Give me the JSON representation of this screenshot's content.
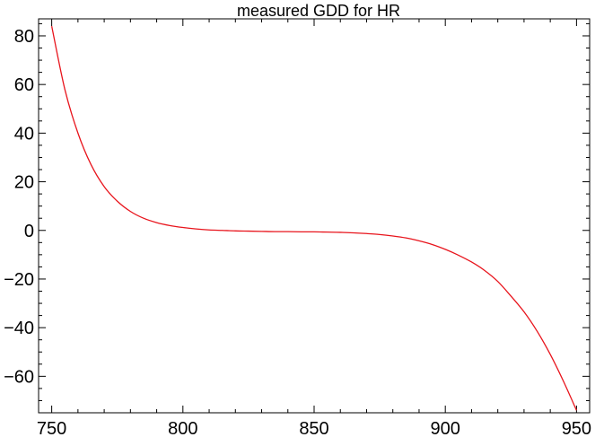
{
  "chart_data": {
    "type": "line",
    "title": "measured GDD for HR",
    "xlabel": "",
    "ylabel": "",
    "xlim": [
      745,
      955
    ],
    "ylim": [
      -75,
      87
    ],
    "x_ticks": [
      750,
      800,
      850,
      900,
      950
    ],
    "y_ticks": [
      -60,
      -40,
      -20,
      0,
      20,
      40,
      60,
      80
    ],
    "x_tick_labels": [
      "750",
      "800",
      "850",
      "900",
      "950"
    ],
    "y_tick_labels": [
      "−60",
      "−40",
      "−20",
      "0",
      "20",
      "40",
      "60",
      "80"
    ],
    "grid": false,
    "line_color": "#e8141c",
    "series": [
      {
        "x": [
          750,
          755,
          760,
          765,
          770,
          775,
          780,
          785,
          790,
          795,
          800,
          805,
          810,
          815,
          820,
          825,
          830,
          835,
          840,
          845,
          850,
          855,
          860,
          865,
          870,
          875,
          880,
          885,
          890,
          895,
          900,
          905,
          910,
          915,
          920,
          925,
          930,
          935,
          940,
          945,
          950
        ],
        "y": [
          84,
          58,
          40,
          27,
          18,
          12,
          7.8,
          5,
          3.2,
          2,
          1.2,
          0.6,
          0.2,
          0,
          -0.2,
          -0.3,
          -0.4,
          -0.5,
          -0.5,
          -0.6,
          -0.6,
          -0.7,
          -0.8,
          -1,
          -1.3,
          -1.7,
          -2.3,
          -3.1,
          -4.3,
          -5.8,
          -7.8,
          -10.2,
          -13,
          -16.5,
          -21,
          -27,
          -33.5,
          -41.5,
          -51,
          -62,
          -74
        ]
      }
    ]
  }
}
